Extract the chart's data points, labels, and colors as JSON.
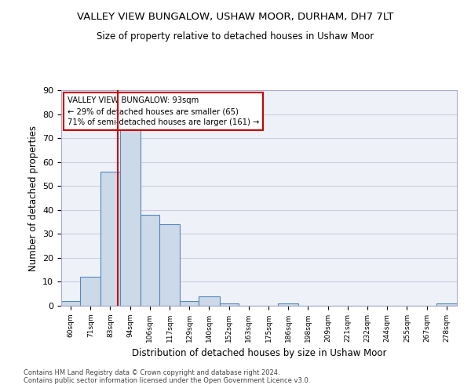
{
  "title_line1": "VALLEY VIEW BUNGALOW, USHAW MOOR, DURHAM, DH7 7LT",
  "title_line2": "Size of property relative to detached houses in Ushaw Moor",
  "xlabel": "Distribution of detached houses by size in Ushaw Moor",
  "ylabel": "Number of detached properties",
  "bar_color": "#ccd9e8",
  "bar_edge_color": "#5588bb",
  "background_color": "#eef2f8",
  "grid_color": "#ccccdd",
  "property_line_x": 93,
  "property_label": "VALLEY VIEW BUNGALOW: 93sqm",
  "annotation_line1": "← 29% of detached houses are smaller (65)",
  "annotation_line2": "71% of semi-detached houses are larger (161) →",
  "annotation_box_color": "#ffffff",
  "annotation_box_edge_color": "#cc0000",
  "property_line_color": "#cc0000",
  "bin_edges": [
    60,
    71,
    83,
    94,
    106,
    117,
    129,
    140,
    152,
    163,
    175,
    186,
    198,
    209,
    221,
    232,
    244,
    255,
    267,
    278,
    290
  ],
  "bin_counts": [
    2,
    12,
    56,
    76,
    38,
    34,
    2,
    4,
    1,
    0,
    0,
    1,
    0,
    0,
    0,
    0,
    0,
    0,
    0,
    1
  ],
  "ylim": [
    0,
    90
  ],
  "yticks": [
    0,
    10,
    20,
    30,
    40,
    50,
    60,
    70,
    80,
    90
  ],
  "footer_line1": "Contains HM Land Registry data © Crown copyright and database right 2024.",
  "footer_line2": "Contains public sector information licensed under the Open Government Licence v3.0."
}
